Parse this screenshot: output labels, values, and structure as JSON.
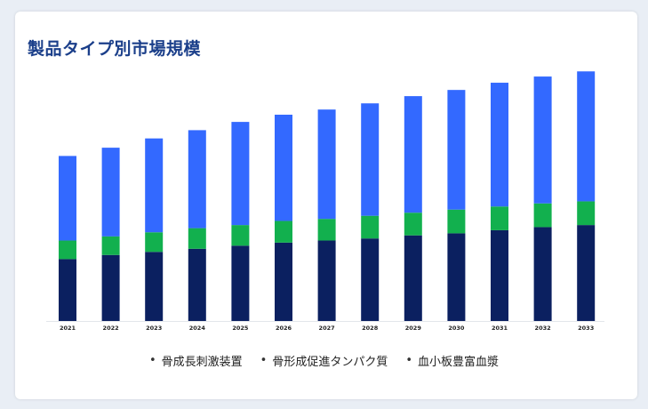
{
  "title": "製品タイプ別市場規模",
  "colors": {
    "title": "#1b3f8a",
    "background": "#e9eef5",
    "card": "#ffffff"
  },
  "chart_data": {
    "type": "bar",
    "stacked": true,
    "categories": [
      "2021",
      "2022",
      "2023",
      "2024",
      "2025",
      "2026",
      "2027",
      "2028",
      "2029",
      "2030",
      "2031",
      "2032",
      "2033"
    ],
    "series": [
      {
        "name": "骨成長刺激装置",
        "color": "#0b2060",
        "values": [
          60,
          64,
          67,
          70,
          73,
          76,
          78,
          80,
          83,
          85,
          88,
          91,
          93
        ]
      },
      {
        "name": "骨形成促進タンパク質",
        "color": "#12b04e",
        "values": [
          18,
          18,
          19,
          20,
          20,
          21,
          21,
          22,
          22,
          23,
          23,
          23,
          23
        ]
      },
      {
        "name": "血小板豊富血漿",
        "color": "#3369ff",
        "values": [
          82,
          86,
          91,
          95,
          100,
          103,
          106,
          109,
          113,
          116,
          120,
          123,
          126
        ]
      }
    ],
    "ylim": [
      0,
      250
    ],
    "grid": false,
    "legend_position": "bottom"
  }
}
